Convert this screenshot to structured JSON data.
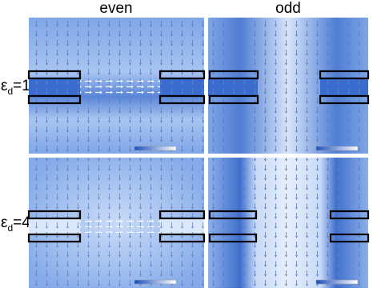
{
  "columns": [
    "even",
    "odd"
  ],
  "rows": [
    {
      "symbol": "ε",
      "subscript": "d",
      "equation": "=1"
    },
    {
      "symbol": "ε",
      "subscript": "d",
      "equation": "=4"
    }
  ]
}
